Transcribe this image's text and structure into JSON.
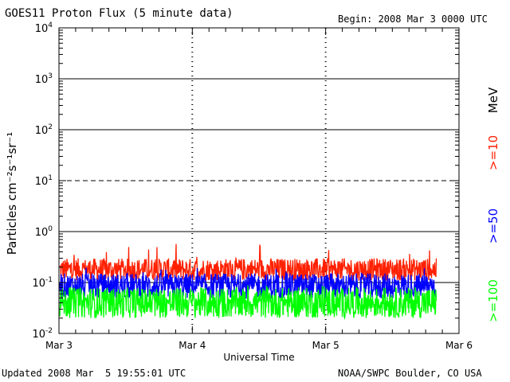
{
  "chart_data": {
    "type": "line",
    "title": "GOES11 Proton Flux (5 minute data)",
    "begin_label": "Begin: 2008 Mar 3 0000 UTC",
    "xlabel": "Universal Time",
    "ylabel": "Particles cm⁻²s⁻¹sr⁻¹",
    "units_label": "MeV",
    "yscale": "log",
    "ylim": [
      0.01,
      10000
    ],
    "y_ticks": [
      {
        "value": 0.01,
        "base": "10",
        "exp": "-2"
      },
      {
        "value": 0.1,
        "base": "10",
        "exp": "-1"
      },
      {
        "value": 1,
        "base": "10",
        "exp": "0"
      },
      {
        "value": 10,
        "base": "10",
        "exp": "1"
      },
      {
        "value": 100,
        "base": "10",
        "exp": "2"
      },
      {
        "value": 1000,
        "base": "10",
        "exp": "3"
      },
      {
        "value": 10000,
        "base": "10",
        "exp": "4"
      }
    ],
    "x_range_days": [
      0,
      3
    ],
    "x_ticks": [
      {
        "day": 0,
        "label": "Mar 3"
      },
      {
        "day": 1,
        "label": "Mar 4"
      },
      {
        "day": 2,
        "label": "Mar 5"
      },
      {
        "day": 3,
        "label": "Mar 6"
      }
    ],
    "data_end_day": 2.83,
    "reference_lines": [
      {
        "value": 1000,
        "style": "solid"
      },
      {
        "value": 100,
        "style": "solid"
      },
      {
        "value": 10,
        "style": "dashed"
      },
      {
        "value": 1,
        "style": "solid"
      },
      {
        "value": 0.1,
        "style": "solid"
      }
    ],
    "series": [
      {
        "name": ">=10",
        "color": "#ff2000",
        "baseline": 0.18,
        "spread": 0.22,
        "spike_max": 0.6
      },
      {
        "name": ">=50",
        "color": "#0000ff",
        "baseline": 0.085,
        "spread": 0.25,
        "spike_max": 0.2
      },
      {
        "name": ">=100",
        "color": "#00ff00",
        "baseline": 0.04,
        "spread": 0.3,
        "spike_max": 0.09
      }
    ]
  },
  "footer": {
    "updated": "Updated 2008 Mar  5 19:55:01 UTC",
    "source": "NOAA/SWPC Boulder, CO USA"
  }
}
